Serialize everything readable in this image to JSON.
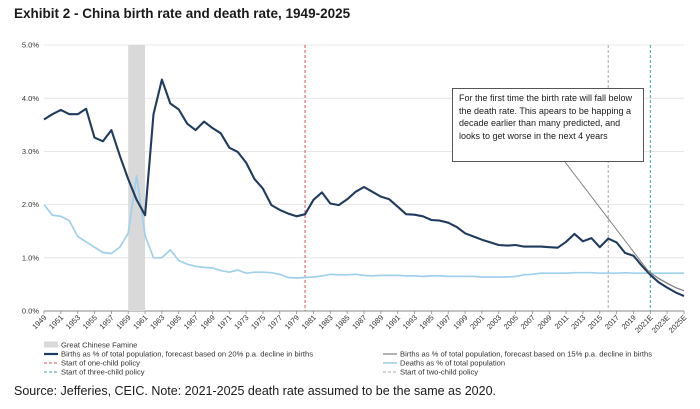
{
  "title": "Exhibit 2 - China birth rate and death rate, 1949-2025",
  "source": "Source: Jefferies, CEIC. Note: 2021-2025 death rate assumed to be the same as 2020.",
  "chart_data": {
    "type": "line",
    "title": "Exhibit 2 - China birth rate and death rate, 1949-2025",
    "xlabel": "",
    "ylabel": "",
    "ylim": [
      0,
      5
    ],
    "xlim": [
      1949,
      2025
    ],
    "yticks": [
      "0.0%",
      "1.0%",
      "2.0%",
      "3.0%",
      "4.0%",
      "5.0%"
    ],
    "xticks": [
      "1949",
      "1951",
      "1953",
      "1955",
      "1957",
      "1959",
      "1961",
      "1963",
      "1965",
      "1967",
      "1969",
      "1971",
      "1973",
      "1975",
      "1977",
      "1979",
      "1981",
      "1983",
      "1985",
      "1987",
      "1989",
      "1991",
      "1993",
      "1995",
      "1997",
      "1999",
      "2001",
      "2003",
      "2005",
      "2007",
      "2009",
      "2011",
      "2013",
      "2015",
      "2017",
      "2019",
      "2021E",
      "2023E",
      "2025E"
    ],
    "grid": true,
    "legend_position": "bottom",
    "series": [
      {
        "name": "Births as % of total population, forecast based on 20% p.a. decline in births",
        "color": "#1f3b5f",
        "x": [
          1949,
          1950,
          1951,
          1952,
          1953,
          1954,
          1955,
          1956,
          1957,
          1958,
          1959,
          1960,
          1961,
          1962,
          1963,
          1964,
          1965,
          1966,
          1967,
          1968,
          1969,
          1970,
          1971,
          1972,
          1973,
          1974,
          1975,
          1976,
          1977,
          1978,
          1979,
          1980,
          1981,
          1982,
          1983,
          1984,
          1985,
          1986,
          1987,
          1988,
          1989,
          1990,
          1991,
          1992,
          1993,
          1994,
          1995,
          1996,
          1997,
          1998,
          1999,
          2000,
          2001,
          2002,
          2003,
          2004,
          2005,
          2006,
          2007,
          2008,
          2009,
          2010,
          2011,
          2012,
          2013,
          2014,
          2015,
          2016,
          2017,
          2018,
          2019,
          2020,
          2021,
          2022,
          2023,
          2024,
          2025
        ],
        "values": [
          3.6,
          3.7,
          3.78,
          3.7,
          3.7,
          3.8,
          3.26,
          3.19,
          3.4,
          2.92,
          2.48,
          2.09,
          1.8,
          3.7,
          4.35,
          3.9,
          3.79,
          3.52,
          3.4,
          3.56,
          3.44,
          3.34,
          3.07,
          2.99,
          2.79,
          2.48,
          2.3,
          1.99,
          1.9,
          1.83,
          1.78,
          1.82,
          2.09,
          2.23,
          2.02,
          1.99,
          2.1,
          2.24,
          2.33,
          2.24,
          2.15,
          2.1,
          1.96,
          1.82,
          1.81,
          1.78,
          1.71,
          1.7,
          1.66,
          1.58,
          1.46,
          1.4,
          1.34,
          1.29,
          1.24,
          1.23,
          1.24,
          1.21,
          1.21,
          1.21,
          1.2,
          1.19,
          1.3,
          1.45,
          1.31,
          1.37,
          1.2,
          1.36,
          1.29,
          1.09,
          1.04,
          0.85,
          0.68,
          0.54,
          0.44,
          0.35,
          0.28
        ]
      },
      {
        "name": "Births as % of total population, forecast based on 15% p.a. decline in births",
        "color": "#7f7f7f",
        "x": [
          2020,
          2021,
          2022,
          2023,
          2024,
          2025
        ],
        "values": [
          0.85,
          0.72,
          0.61,
          0.52,
          0.44,
          0.38
        ]
      },
      {
        "name": "Deaths as % of total population",
        "color": "#9fd0ec",
        "x": [
          1949,
          1950,
          1951,
          1952,
          1953,
          1954,
          1955,
          1956,
          1957,
          1958,
          1959,
          1960,
          1961,
          1962,
          1963,
          1964,
          1965,
          1966,
          1967,
          1968,
          1969,
          1970,
          1971,
          1972,
          1973,
          1974,
          1975,
          1976,
          1977,
          1978,
          1979,
          1980,
          1981,
          1982,
          1983,
          1984,
          1985,
          1986,
          1987,
          1988,
          1989,
          1990,
          1991,
          1992,
          1993,
          1994,
          1995,
          1996,
          1997,
          1998,
          1999,
          2000,
          2001,
          2002,
          2003,
          2004,
          2005,
          2006,
          2007,
          2008,
          2009,
          2010,
          2011,
          2012,
          2013,
          2014,
          2015,
          2016,
          2017,
          2018,
          2019,
          2020,
          2021,
          2022,
          2023,
          2024,
          2025
        ],
        "values": [
          2.0,
          1.8,
          1.78,
          1.7,
          1.4,
          1.3,
          1.2,
          1.1,
          1.08,
          1.2,
          1.46,
          2.54,
          1.42,
          1.0,
          1.0,
          1.15,
          0.95,
          0.88,
          0.84,
          0.82,
          0.81,
          0.76,
          0.73,
          0.77,
          0.71,
          0.73,
          0.73,
          0.72,
          0.69,
          0.63,
          0.62,
          0.63,
          0.64,
          0.66,
          0.69,
          0.68,
          0.68,
          0.69,
          0.67,
          0.66,
          0.67,
          0.67,
          0.67,
          0.66,
          0.66,
          0.65,
          0.66,
          0.66,
          0.65,
          0.65,
          0.65,
          0.65,
          0.64,
          0.64,
          0.64,
          0.64,
          0.65,
          0.68,
          0.69,
          0.71,
          0.71,
          0.71,
          0.71,
          0.72,
          0.72,
          0.72,
          0.71,
          0.71,
          0.71,
          0.72,
          0.71,
          0.71,
          0.71,
          0.71,
          0.71,
          0.71,
          0.71
        ]
      }
    ],
    "markers": [
      {
        "name": "Great Chinese Famine",
        "type": "band",
        "x_start": 1959,
        "x_end": 1961,
        "color": "#d9d9d9"
      },
      {
        "name": "Start of one-child policy",
        "type": "vline",
        "x": 1980,
        "color": "#e05050"
      },
      {
        "name": "Start of two-child policy",
        "type": "vline",
        "x": 2016,
        "color": "#a6a6a6"
      },
      {
        "name": "Start of three-child policy",
        "type": "vline",
        "x": 2021,
        "color": "#3aa6a6"
      }
    ],
    "annotation": "For the first time the birth rate will  fall below the death rate. This apears to be happing a decade earlier than many predicted, and looks to get worse in the next 4 years",
    "annotation_target": {
      "x": 2021,
      "y": 0.7
    }
  }
}
